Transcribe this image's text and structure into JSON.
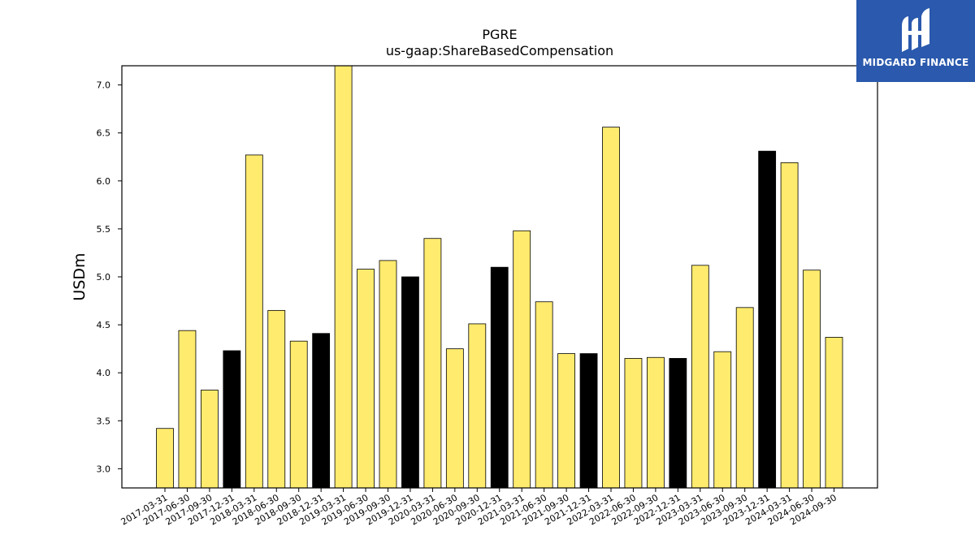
{
  "chart_data": {
    "type": "bar",
    "title": "PGRE",
    "subtitle": "us-gaap:ShareBasedCompensation",
    "xlabel": "",
    "ylabel": "USDm",
    "ylim": [
      2.8,
      7.2
    ],
    "yticks": [
      "3.0",
      "3.5",
      "4.0",
      "4.5",
      "5.0",
      "5.5",
      "6.0",
      "6.5",
      "7.0"
    ],
    "grid": false,
    "bar_colors": {
      "quarter": "#ffeb6e",
      "year_end": "#000000",
      "edge": "#000000"
    },
    "categories": [
      "2017-03-31",
      "2017-06-30",
      "2017-09-30",
      "2017-12-31",
      "2018-03-31",
      "2018-06-30",
      "2018-09-30",
      "2018-12-31",
      "2019-03-31",
      "2019-06-30",
      "2019-09-30",
      "2019-12-31",
      "2020-03-31",
      "2020-06-30",
      "2020-09-30",
      "2020-12-31",
      "2021-03-31",
      "2021-06-30",
      "2021-09-30",
      "2021-12-31",
      "2022-03-31",
      "2022-06-30",
      "2022-09-30",
      "2022-12-31",
      "2023-03-31",
      "2023-06-30",
      "2023-09-30",
      "2023-12-31",
      "2024-03-31",
      "2024-06-30",
      "2024-09-30"
    ],
    "values": [
      3.42,
      4.44,
      3.82,
      4.23,
      6.27,
      4.65,
      4.33,
      4.41,
      7.22,
      5.08,
      5.17,
      5.0,
      5.4,
      4.25,
      4.51,
      5.1,
      5.48,
      4.74,
      4.2,
      4.2,
      6.56,
      4.15,
      4.16,
      4.15,
      5.12,
      4.22,
      4.68,
      6.31,
      6.19,
      5.07,
      4.37
    ]
  },
  "logo": {
    "text": "MIDGARD FINANCE",
    "mark_icon": "midgard-logo-icon"
  }
}
